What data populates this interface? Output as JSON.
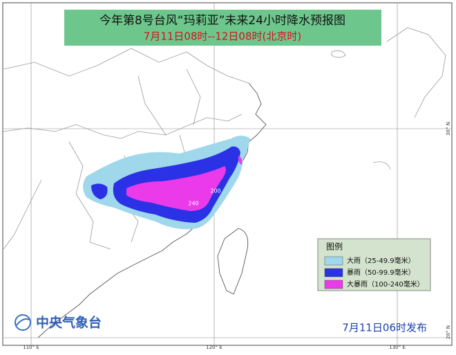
{
  "header": {
    "title": "今年第8号台风“玛莉亚”未来24小时降水预报图",
    "subtitle": "7月11日08时--12日08时(北京时)"
  },
  "legend": {
    "title": "图例",
    "items": [
      {
        "label": "大雨（25-49.9毫米）",
        "color": "#9fd8ea"
      },
      {
        "label": "暴雨（50-99.9毫米）",
        "color": "#2b32e6"
      },
      {
        "label": "大暴雨（100-240毫米）",
        "color": "#ea3aea"
      }
    ]
  },
  "map": {
    "contour_labels": [
      "200",
      "240"
    ],
    "lon_labels": [
      "110° E",
      "120° E",
      "130° E"
    ],
    "lat_labels": [
      "30° N",
      "20° N"
    ]
  },
  "footer": {
    "agency": "中央气象台",
    "issued": "7月11日06时发布"
  }
}
